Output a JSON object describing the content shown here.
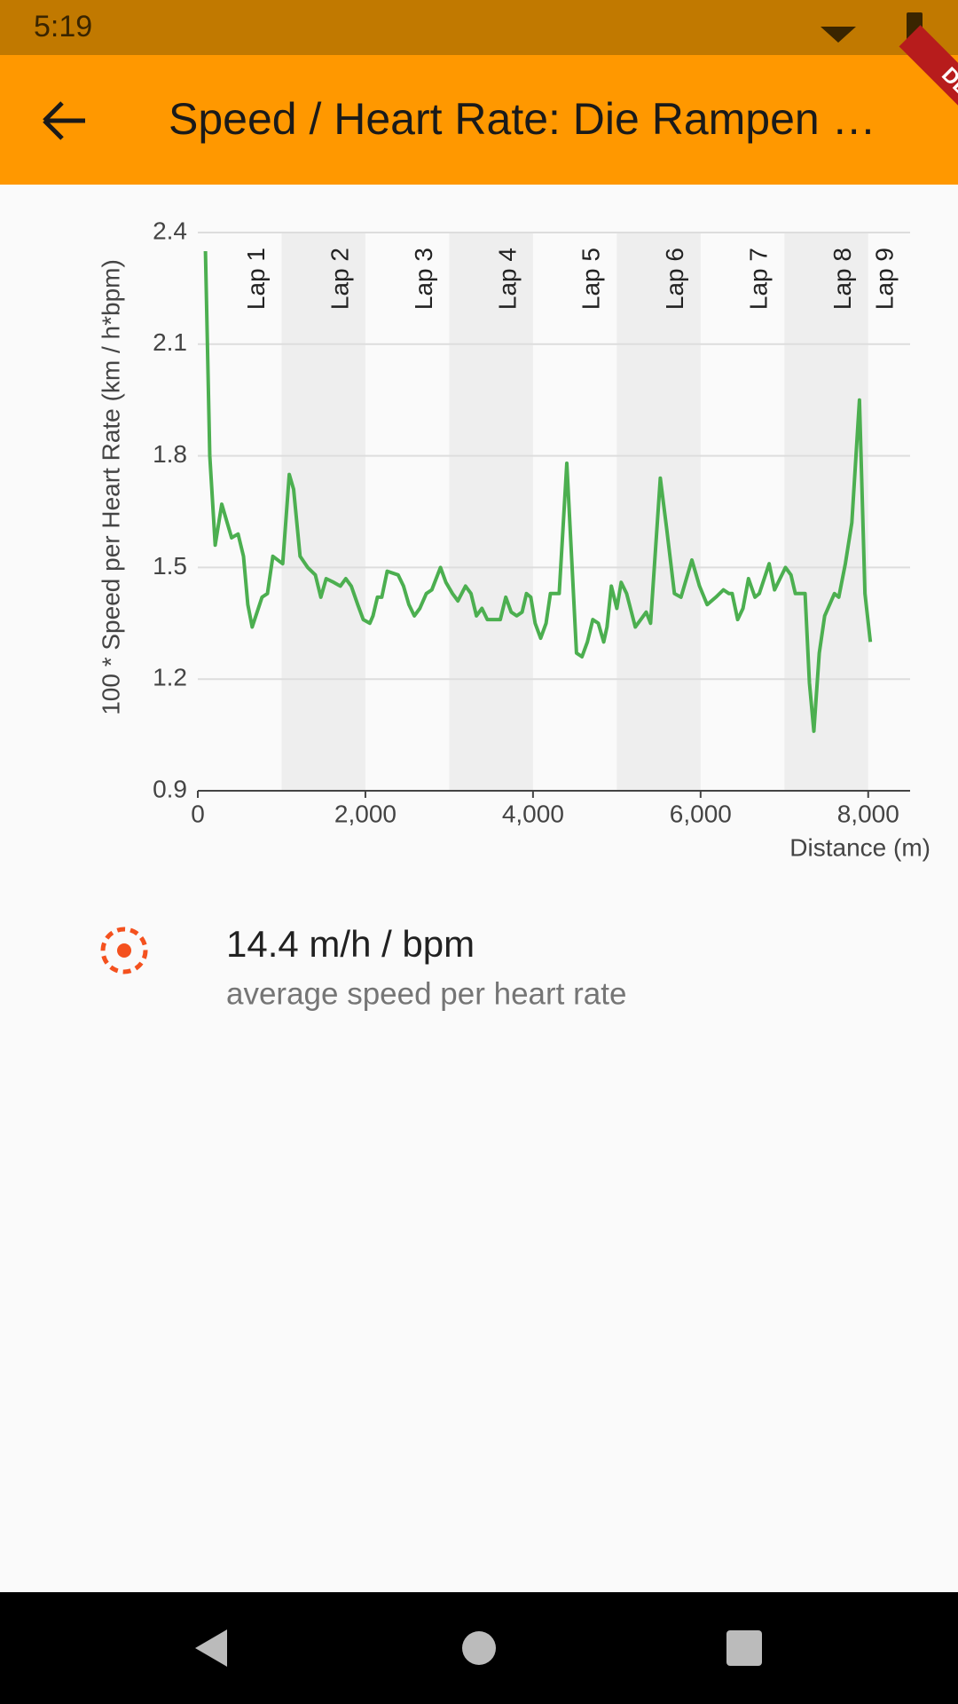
{
  "status_bar": {
    "time": "5:19"
  },
  "debug_banner": "DEBUG",
  "app_bar": {
    "title": "Speed / Heart Rate: Die Rampen …"
  },
  "chart_data": {
    "type": "line",
    "y_label": "100 * Speed per Heart Rate (km / h*bpm)",
    "x_label": "Distance (m)",
    "color": "#4caf50",
    "xlim": [
      0,
      8500
    ],
    "ylim": [
      0.9,
      2.4
    ],
    "xticks": [
      0,
      {
        "value": 2000,
        "label": "2,000"
      },
      {
        "value": 4000,
        "label": "4,000"
      },
      {
        "value": 6000,
        "label": "6,000"
      },
      {
        "value": 8000,
        "label": "8,000"
      }
    ],
    "yticks": [
      0.9,
      1.2,
      1.5,
      1.8,
      2.1,
      2.4
    ],
    "grid": true,
    "laps": [
      {
        "label": "Lap 1",
        "end": 1000
      },
      {
        "label": "Lap 2",
        "end": 2000
      },
      {
        "label": "Lap 3",
        "end": 3000
      },
      {
        "label": "Lap 4",
        "end": 4000
      },
      {
        "label": "Lap 5",
        "end": 5000
      },
      {
        "label": "Lap 6",
        "end": 6000
      },
      {
        "label": "Lap 7",
        "end": 7000
      },
      {
        "label": "Lap 8",
        "end": 8000
      },
      {
        "label": "Lap 9",
        "end": 8500
      }
    ],
    "x": [
      91,
      143,
      208,
      286,
      403,
      481,
      545,
      597,
      649,
      766,
      831,
      896,
      1013,
      1091,
      1143,
      1221,
      1312,
      1403,
      1468,
      1532,
      1623,
      1701,
      1766,
      1831,
      1909,
      1974,
      2052,
      2091,
      2143,
      2195,
      2260,
      2390,
      2455,
      2519,
      2584,
      2649,
      2727,
      2792,
      2896,
      2961,
      3039,
      3104,
      3195,
      3260,
      3325,
      3390,
      3455,
      3610,
      3675,
      3740,
      3805,
      3870,
      3922,
      3974,
      4026,
      4091,
      4156,
      4208,
      4312,
      4403,
      4519,
      4584,
      4649,
      4714,
      4779,
      4844,
      4883,
      4935,
      5000,
      5052,
      5117,
      5221,
      5286,
      5351,
      5403,
      5519,
      5597,
      5688,
      5766,
      5896,
      5987,
      6078,
      6182,
      6273,
      6338,
      6377,
      6442,
      6506,
      6571,
      6649,
      6701,
      6818,
      6883,
      7013,
      7078,
      7130,
      7247,
      7299,
      7351,
      7416,
      7481,
      7597,
      7649,
      7727,
      7805,
      7896,
      7961,
      8026
    ],
    "values": [
      2.35,
      1.8,
      1.56,
      1.67,
      1.58,
      1.59,
      1.53,
      1.4,
      1.34,
      1.42,
      1.43,
      1.53,
      1.51,
      1.75,
      1.71,
      1.53,
      1.5,
      1.48,
      1.42,
      1.47,
      1.46,
      1.45,
      1.47,
      1.45,
      1.4,
      1.36,
      1.35,
      1.37,
      1.42,
      1.42,
      1.49,
      1.48,
      1.45,
      1.4,
      1.37,
      1.39,
      1.43,
      1.44,
      1.5,
      1.46,
      1.43,
      1.41,
      1.45,
      1.43,
      1.37,
      1.39,
      1.36,
      1.36,
      1.42,
      1.38,
      1.37,
      1.38,
      1.43,
      1.42,
      1.35,
      1.31,
      1.35,
      1.43,
      1.43,
      1.78,
      1.27,
      1.26,
      1.3,
      1.36,
      1.35,
      1.3,
      1.34,
      1.45,
      1.39,
      1.46,
      1.43,
      1.34,
      1.36,
      1.38,
      1.35,
      1.74,
      1.6,
      1.43,
      1.42,
      1.52,
      1.45,
      1.4,
      1.42,
      1.44,
      1.43,
      1.43,
      1.36,
      1.39,
      1.47,
      1.42,
      1.43,
      1.51,
      1.44,
      1.5,
      1.48,
      1.43,
      1.43,
      1.19,
      1.06,
      1.27,
      1.37,
      1.43,
      1.42,
      1.51,
      1.62,
      1.95,
      1.43,
      1.3
    ]
  },
  "stat": {
    "value": "14.4 m/h / bpm",
    "label": "average speed per heart rate"
  }
}
